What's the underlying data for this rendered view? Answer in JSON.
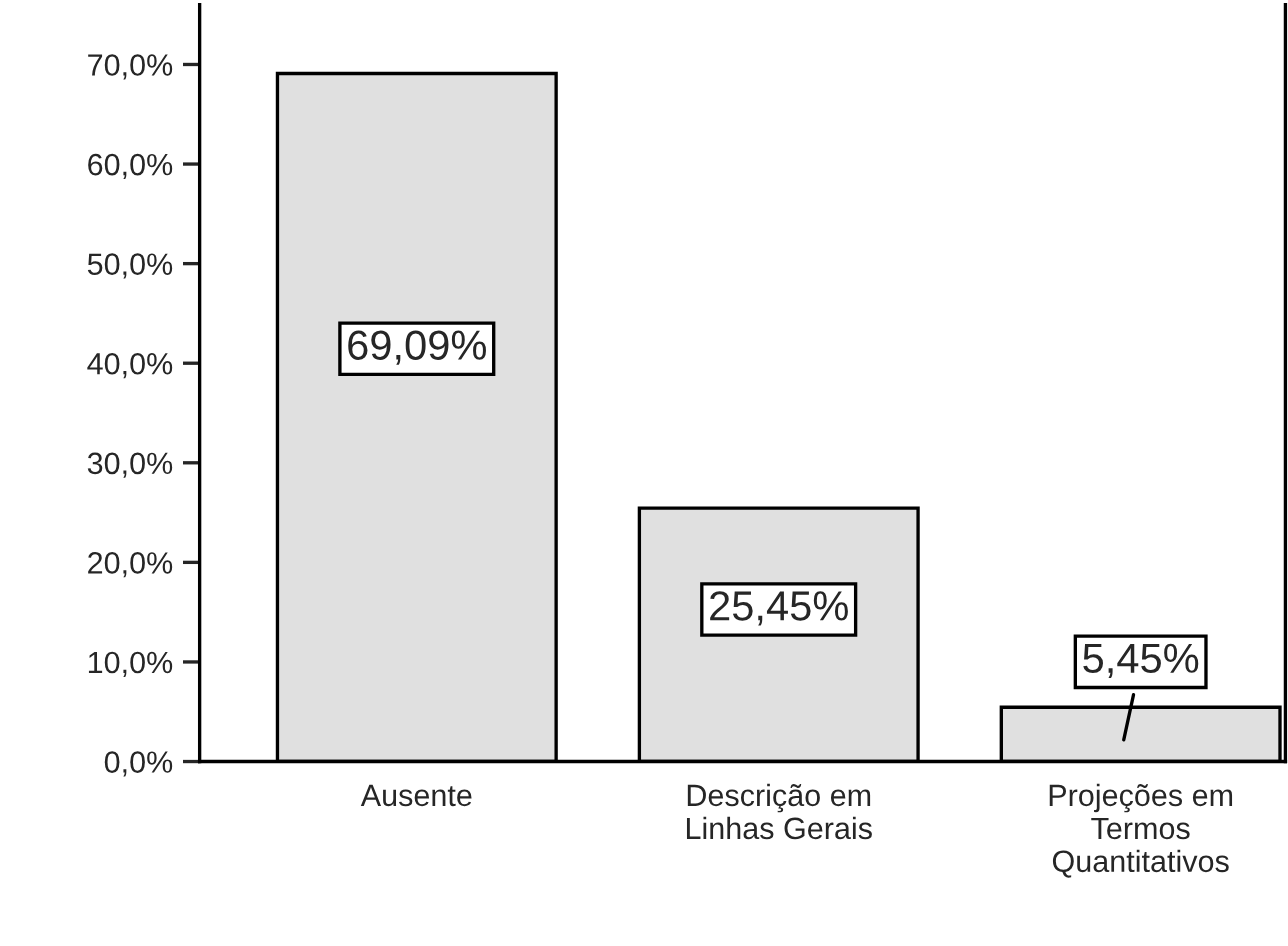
{
  "chart_data": {
    "type": "bar",
    "categories": [
      "Ausente",
      "Descrição em\nLinhas Gerais",
      "Projeções em\nTermos\nQuantitativos"
    ],
    "values": [
      69.09,
      25.45,
      5.45
    ],
    "value_labels": [
      "69,09%",
      "25,45%",
      "5,45%"
    ],
    "color": "#e0e0e0",
    "ylim": [
      0,
      76
    ],
    "yticks": [
      {
        "value": 0,
        "label": "0,0%"
      },
      {
        "value": 10,
        "label": "10,0%"
      },
      {
        "value": 20,
        "label": "20,0%"
      },
      {
        "value": 30,
        "label": "30,0%"
      },
      {
        "value": 40,
        "label": "40,0%"
      },
      {
        "value": 50,
        "label": "50,0%"
      },
      {
        "value": 60,
        "label": "60,0%"
      },
      {
        "value": 70,
        "label": "70,0%"
      }
    ],
    "grid": false,
    "legend": false
  }
}
